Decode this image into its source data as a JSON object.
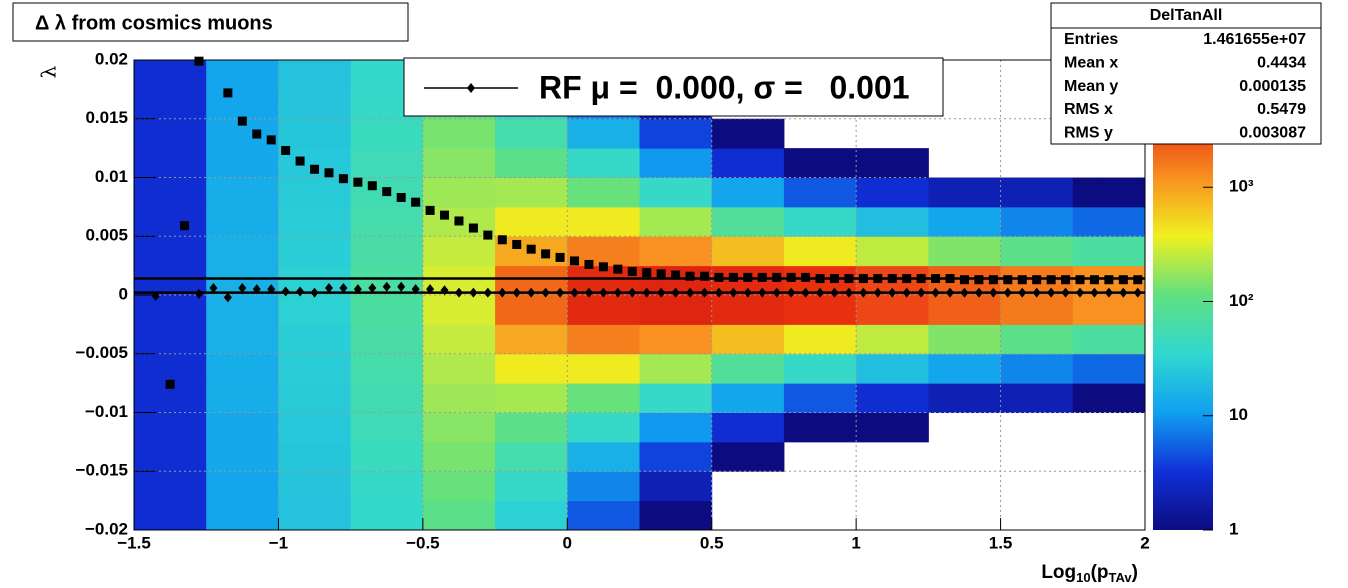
{
  "chart_data": {
    "type": "heatmap",
    "title": "Δ λ from cosmics muons",
    "xlabel": [
      "Log",
      "10",
      "(p",
      "TAv",
      ")"
    ],
    "ylabel": "λ",
    "xlim": [
      -1.5,
      2
    ],
    "ylim": [
      -0.02,
      0.02
    ],
    "xticks": [
      {
        "value": -1.5,
        "label": "−1.5"
      },
      {
        "value": -1,
        "label": "−1"
      },
      {
        "value": -0.5,
        "label": "−0.5"
      },
      0,
      0.5,
      1,
      1.5,
      2
    ],
    "yticks": [
      {
        "value": -0.02,
        "label": "−0.02"
      },
      {
        "value": -0.015,
        "label": "−0.015"
      },
      {
        "value": -0.01,
        "label": "−0.01"
      },
      {
        "value": -0.005,
        "label": "−0.005"
      },
      0,
      0.005,
      0.01,
      0.015,
      0.02
    ],
    "grid": true,
    "zlim": [
      1,
      13000
    ],
    "zticks": [
      1,
      10,
      {
        "value": 100,
        "label": "10²"
      },
      {
        "value": 1000,
        "label": "10³"
      }
    ],
    "log_z": true,
    "palette": [
      "#0c0c80",
      "#1030d8",
      "#10a0f0",
      "#30d8d0",
      "#60e080",
      "#f0f020",
      "#f89020",
      "#e83010",
      "#c81010"
    ],
    "xbins": [
      -1.5,
      -1.25,
      -1,
      -0.75,
      -0.5,
      -0.25,
      0,
      0.25,
      0.5,
      0.75,
      1,
      1.25,
      1.5,
      1.75,
      2
    ],
    "ybins": [
      -0.02,
      -0.0175,
      -0.015,
      -0.0125,
      -0.01,
      -0.0075,
      -0.005,
      -0.0025,
      0,
      0.0025,
      0.005,
      0.0075,
      0.01,
      0.0125,
      0.015,
      0.0175,
      0.02
    ],
    "z": [
      [
        3,
        12,
        22,
        38,
        100,
        30,
        5,
        1,
        0,
        0,
        0,
        0,
        0,
        0
      ],
      [
        3,
        12,
        23,
        40,
        120,
        40,
        8,
        2,
        0,
        0,
        0,
        0,
        0,
        0
      ],
      [
        3,
        13,
        24,
        45,
        140,
        60,
        15,
        4,
        1,
        0,
        0,
        0,
        0,
        0
      ],
      [
        3,
        13,
        25,
        50,
        160,
        100,
        40,
        10,
        3,
        1,
        1,
        0,
        0,
        0
      ],
      [
        3,
        14,
        26,
        55,
        190,
        200,
        120,
        40,
        12,
        5,
        3,
        2,
        2,
        1
      ],
      [
        3,
        14,
        27,
        60,
        220,
        400,
        400,
        200,
        80,
        40,
        20,
        12,
        8,
        6
      ],
      [
        3,
        15,
        28,
        65,
        260,
        900,
        1500,
        1200,
        700,
        400,
        250,
        150,
        100,
        70
      ],
      [
        3,
        15,
        30,
        70,
        300,
        2000,
        5000,
        6000,
        5000,
        4000,
        3000,
        2200,
        1600,
        1200
      ],
      [
        3,
        15,
        30,
        70,
        300,
        2000,
        5000,
        6000,
        5000,
        4000,
        3000,
        2200,
        1600,
        1200
      ],
      [
        3,
        15,
        28,
        65,
        260,
        900,
        1500,
        1200,
        700,
        400,
        250,
        150,
        100,
        70
      ],
      [
        3,
        14,
        27,
        60,
        220,
        400,
        400,
        200,
        80,
        40,
        20,
        12,
        8,
        6
      ],
      [
        3,
        14,
        26,
        55,
        190,
        200,
        120,
        40,
        12,
        5,
        3,
        2,
        2,
        1
      ],
      [
        3,
        13,
        25,
        50,
        160,
        100,
        40,
        10,
        3,
        1,
        1,
        0,
        0,
        0
      ],
      [
        3,
        13,
        24,
        45,
        140,
        60,
        15,
        4,
        1,
        0,
        0,
        0,
        0,
        0
      ],
      [
        3,
        12,
        23,
        40,
        120,
        40,
        8,
        2,
        0,
        0,
        0,
        0,
        0,
        0
      ],
      [
        3,
        12,
        22,
        38,
        100,
        30,
        5,
        1,
        0,
        0,
        0,
        0,
        0,
        0
      ]
    ],
    "x": [
      -1.425,
      -1.375,
      -1.325,
      -1.275,
      -1.225,
      -1.175,
      -1.125,
      -1.075,
      -1.025,
      -0.975,
      -0.925,
      -0.875,
      -0.825,
      -0.775,
      -0.725,
      -0.675,
      -0.625,
      -0.575,
      -0.525,
      -0.475,
      -0.425,
      -0.375,
      -0.325,
      -0.275,
      -0.225,
      -0.175,
      -0.125,
      -0.075,
      -0.025,
      0.025,
      0.075,
      0.125,
      0.175,
      0.225,
      0.275,
      0.325,
      0.375,
      0.425,
      0.475,
      0.525,
      0.575,
      0.625,
      0.675,
      0.725,
      0.775,
      0.825,
      0.875,
      0.925,
      0.975,
      1.025,
      1.075,
      1.125,
      1.175,
      1.225,
      1.275,
      1.325,
      1.375,
      1.425,
      1.475,
      1.525,
      1.575,
      1.625,
      1.675,
      1.725,
      1.775,
      1.825,
      1.875,
      1.925,
      1.975
    ],
    "series": [
      {
        "marker": "square",
        "color": "#000000",
        "values": [
          null,
          -0.0076,
          0.0059,
          0.0199,
          null,
          0.0172,
          0.0148,
          0.0137,
          0.0132,
          0.0123,
          0.0114,
          0.0107,
          0.0104,
          0.0099,
          0.0096,
          0.0093,
          0.0088,
          0.0083,
          0.0079,
          0.0072,
          0.0068,
          0.0063,
          0.0057,
          0.0051,
          0.0047,
          0.0043,
          0.0039,
          0.0035,
          0.0032,
          0.0029,
          0.0026,
          0.0024,
          0.0022,
          0.002,
          0.0019,
          0.0018,
          0.0017,
          0.0016,
          0.0016,
          0.0015,
          0.0015,
          0.0015,
          0.0015,
          0.0015,
          0.0015,
          0.0015,
          0.0014,
          0.0014,
          0.0014,
          0.0014,
          0.0014,
          0.0014,
          0.0014,
          0.0014,
          0.0014,
          0.0014,
          0.0013,
          0.0013,
          0.0013,
          0.0013,
          0.0013,
          0.0013,
          0.0013,
          0.0013,
          0.0013,
          0.0013,
          0.0013,
          0.0013,
          0.0013
        ]
      },
      {
        "name": "RF μ =  0.000, σ =   0.001",
        "marker": "diamond",
        "color": "#000000",
        "values": [
          -0.0001,
          null,
          null,
          0.0001,
          0.0006,
          -0.0002,
          0.0006,
          0.0005,
          0.0005,
          0.0003,
          0.0003,
          0.0002,
          0.0006,
          0.0006,
          0.0005,
          0.0006,
          0.0007,
          0.0007,
          0.0005,
          0.0005,
          0.0004,
          0.0002,
          0.0002,
          0.0002,
          0.0002,
          0.0002,
          0.0002,
          0.0002,
          0.0002,
          0.0002,
          0.0002,
          0.0002,
          0.0002,
          0.0002,
          0.0002,
          0.0002,
          0.0002,
          0.0002,
          0.0002,
          0.0002,
          0.0002,
          0.0002,
          0.0002,
          0.0002,
          0.0002,
          0.0002,
          0.0002,
          0.0002,
          0.0002,
          0.0002,
          0.0002,
          0.0002,
          0.0002,
          0.0002,
          0.0002,
          0.0002,
          0.0002,
          0.0002,
          0.0002,
          0.0002,
          0.0002,
          0.0002,
          0.0002,
          0.0002,
          0.0002,
          0.0002,
          0.0002,
          0.0002,
          0.0002
        ]
      }
    ],
    "hlines": [
      0.0014,
      0.0002
    ],
    "stats": {
      "title": "DelTanAll",
      "rows": [
        [
          "Entries",
          "1.461655e+07"
        ],
        [
          "Mean x",
          "0.4434"
        ],
        [
          "Mean y",
          "0.000135"
        ],
        [
          "RMS x",
          "0.5479"
        ],
        [
          "RMS y",
          "0.003087"
        ]
      ]
    }
  }
}
